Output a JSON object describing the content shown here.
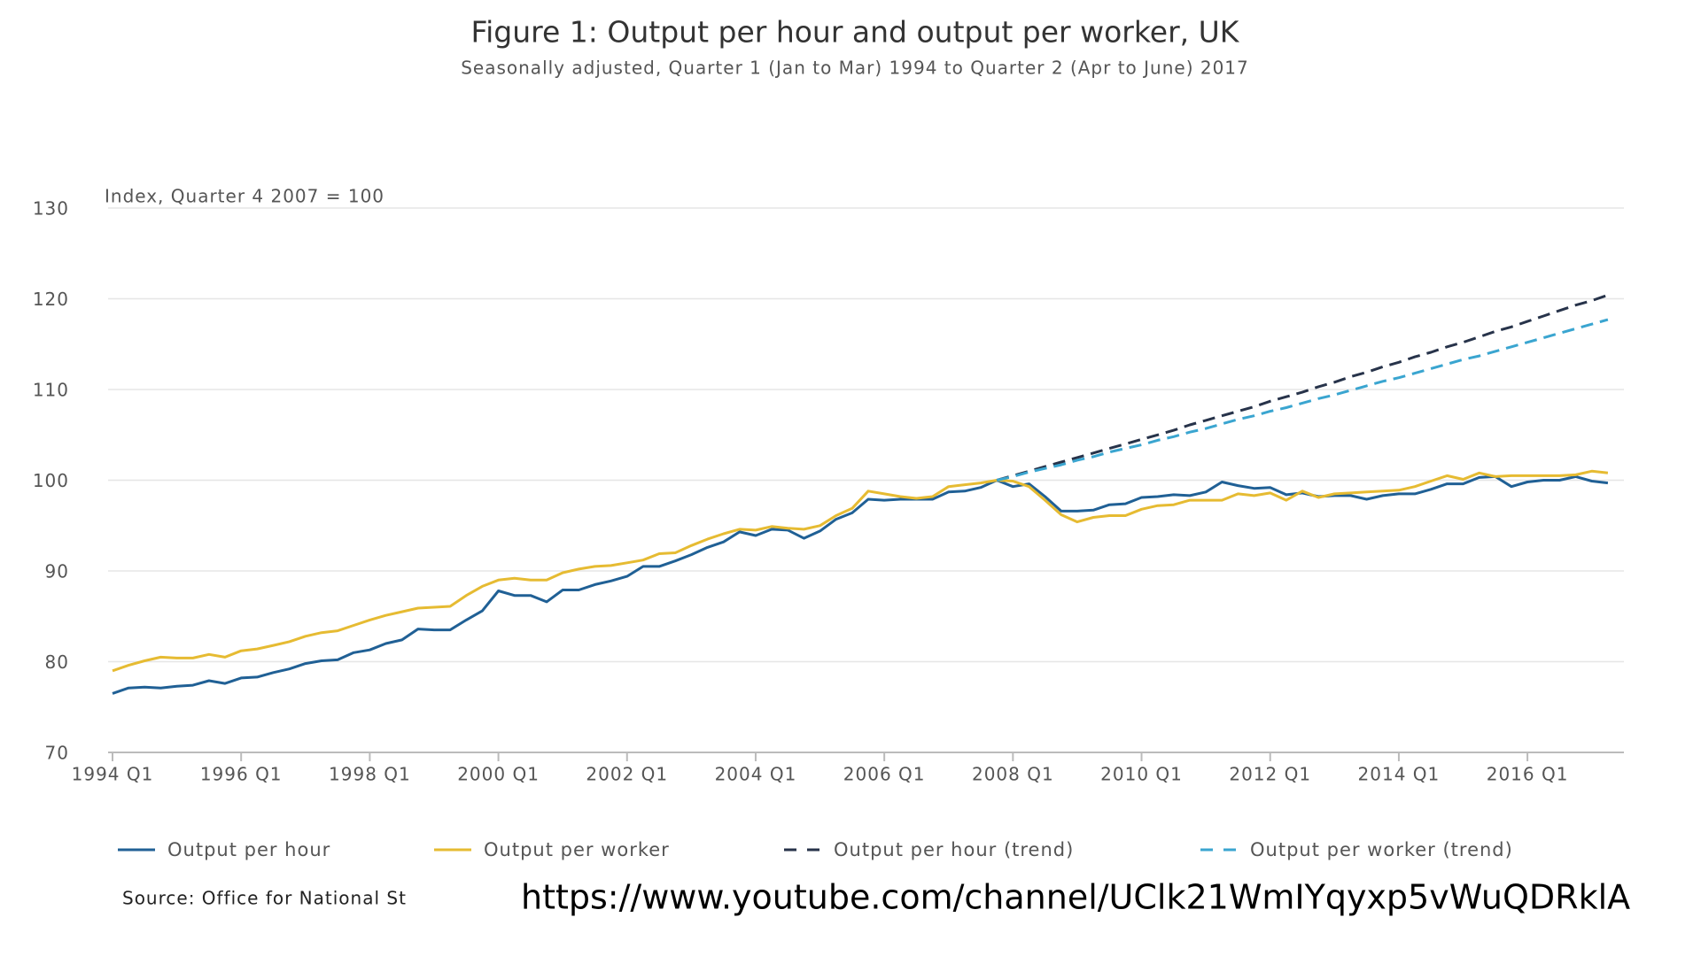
{
  "chart_data": {
    "type": "line",
    "title": "Figure 1: Output per hour and output per worker, UK",
    "subtitle": "Seasonally adjusted, Quarter 1 (Jan to Mar) 1994 to Quarter 2 (Apr to June) 2017",
    "y_label": "Index, Quarter 4 2007 = 100",
    "source": "Source: Office for National St",
    "overlay_text": "https://www.youtube.com/channel/UClk21WmIYqyxp5vWuQDRklA",
    "categories": [
      "1994 Q1",
      null,
      null,
      null,
      null,
      null,
      null,
      null,
      "1996 Q1",
      null,
      null,
      null,
      null,
      null,
      null,
      null,
      "1998 Q1",
      null,
      null,
      null,
      null,
      null,
      null,
      null,
      "2000 Q1",
      null,
      null,
      null,
      null,
      null,
      null,
      null,
      "2002 Q1",
      null,
      null,
      null,
      null,
      null,
      null,
      null,
      "2004 Q1",
      null,
      null,
      null,
      null,
      null,
      null,
      null,
      "2006 Q1",
      null,
      null,
      null,
      null,
      null,
      null,
      null,
      "2008 Q1",
      null,
      null,
      null,
      null,
      null,
      null,
      null,
      "2010 Q1",
      null,
      null,
      null,
      null,
      null,
      null,
      null,
      "2012 Q1",
      null,
      null,
      null,
      null,
      null,
      null,
      null,
      "2014 Q1",
      null,
      null,
      null,
      null,
      null,
      null,
      null,
      "2016 Q1",
      null,
      null,
      null,
      null,
      null
    ],
    "ylim": [
      70,
      130
    ],
    "yticks": [
      70,
      80,
      90,
      100,
      110,
      120,
      130
    ],
    "grid": true,
    "legend": "bottom",
    "series": [
      {
        "name": "Output per hour",
        "color": "#206095",
        "dash": false,
        "values": [
          76.5,
          77.1,
          77.2,
          77.1,
          77.3,
          77.4,
          77.9,
          77.6,
          78.2,
          78.3,
          78.8,
          79.2,
          79.8,
          80.1,
          80.2,
          81.0,
          81.3,
          82.0,
          82.4,
          83.6,
          83.5,
          83.5,
          84.6,
          85.6,
          87.8,
          87.3,
          87.3,
          86.6,
          87.9,
          87.9,
          88.5,
          88.9,
          89.4,
          90.5,
          90.5,
          91.1,
          91.8,
          92.6,
          93.2,
          94.3,
          93.9,
          94.6,
          94.5,
          93.6,
          94.4,
          95.7,
          96.4,
          97.9,
          97.8,
          97.9,
          97.9,
          97.9,
          98.7,
          98.8,
          99.2,
          100.0,
          99.3,
          99.6,
          98.2,
          96.6,
          96.6,
          96.7,
          97.3,
          97.4,
          98.1,
          98.2,
          98.4,
          98.3,
          98.7,
          99.8,
          99.4,
          99.1,
          99.2,
          98.4,
          98.6,
          98.2,
          98.3,
          98.3,
          97.9,
          98.3,
          98.5,
          98.5,
          99.0,
          99.6,
          99.6,
          100.3,
          100.4,
          99.3,
          99.8,
          100.0,
          100.0,
          100.4,
          99.9,
          99.7
        ]
      },
      {
        "name": "Output per worker",
        "color": "#e6bb32",
        "dash": false,
        "values": [
          79.0,
          79.6,
          80.1,
          80.5,
          80.4,
          80.4,
          80.8,
          80.5,
          81.2,
          81.4,
          81.8,
          82.2,
          82.8,
          83.2,
          83.4,
          84.0,
          84.6,
          85.1,
          85.5,
          85.9,
          86.0,
          86.1,
          87.3,
          88.3,
          89.0,
          89.2,
          89.0,
          89.0,
          89.8,
          90.2,
          90.5,
          90.6,
          90.9,
          91.2,
          91.9,
          92.0,
          92.8,
          93.5,
          94.1,
          94.6,
          94.5,
          94.9,
          94.7,
          94.6,
          95.0,
          96.1,
          96.9,
          98.8,
          98.5,
          98.2,
          98.0,
          98.2,
          99.3,
          99.5,
          99.7,
          100.0,
          99.9,
          99.3,
          97.8,
          96.2,
          95.4,
          95.9,
          96.1,
          96.1,
          96.8,
          97.2,
          97.3,
          97.8,
          97.8,
          97.8,
          98.5,
          98.3,
          98.6,
          97.8,
          98.8,
          98.1,
          98.5,
          98.6,
          98.7,
          98.8,
          98.9,
          99.3,
          99.9,
          100.5,
          100.1,
          100.8,
          100.4,
          100.5,
          100.5,
          100.5,
          100.5,
          100.6,
          101.0,
          100.8
        ]
      },
      {
        "name": "Output per hour (trend)",
        "color": "#27334a",
        "dash": true,
        "values": [
          null,
          null,
          null,
          null,
          null,
          null,
          null,
          null,
          null,
          null,
          null,
          null,
          null,
          null,
          null,
          null,
          null,
          null,
          null,
          null,
          null,
          null,
          null,
          null,
          null,
          null,
          null,
          null,
          null,
          null,
          null,
          null,
          null,
          null,
          null,
          null,
          null,
          null,
          null,
          null,
          null,
          null,
          null,
          null,
          null,
          null,
          null,
          null,
          null,
          null,
          null,
          null,
          null,
          null,
          null,
          100.0,
          100.5,
          101.0,
          101.5,
          102.0,
          102.5,
          103.0,
          103.5,
          104.0,
          104.5,
          105.0,
          105.5,
          106.1,
          106.6,
          107.1,
          107.6,
          108.1,
          108.7,
          109.2,
          109.7,
          110.3,
          110.8,
          111.4,
          111.9,
          112.5,
          113.0,
          113.6,
          114.1,
          114.7,
          115.2,
          115.8,
          116.4,
          116.9,
          117.5,
          118.1,
          118.7,
          119.3,
          119.8,
          120.4
        ]
      },
      {
        "name": "Output per worker (trend)",
        "color": "#3aa5d0",
        "dash": true,
        "values": [
          null,
          null,
          null,
          null,
          null,
          null,
          null,
          null,
          null,
          null,
          null,
          null,
          null,
          null,
          null,
          null,
          null,
          null,
          null,
          null,
          null,
          null,
          null,
          null,
          null,
          null,
          null,
          null,
          null,
          null,
          null,
          null,
          null,
          null,
          null,
          null,
          null,
          null,
          null,
          null,
          null,
          null,
          null,
          null,
          null,
          null,
          null,
          null,
          null,
          null,
          null,
          null,
          null,
          null,
          null,
          100.0,
          100.4,
          100.9,
          101.3,
          101.7,
          102.2,
          102.6,
          103.1,
          103.5,
          103.9,
          104.4,
          104.8,
          105.3,
          105.7,
          106.2,
          106.7,
          107.1,
          107.6,
          108.0,
          108.5,
          109.0,
          109.4,
          109.9,
          110.4,
          110.9,
          111.3,
          111.8,
          112.3,
          112.8,
          113.3,
          113.7,
          114.2,
          114.7,
          115.2,
          115.7,
          116.2,
          116.7,
          117.2,
          117.7
        ]
      }
    ]
  }
}
